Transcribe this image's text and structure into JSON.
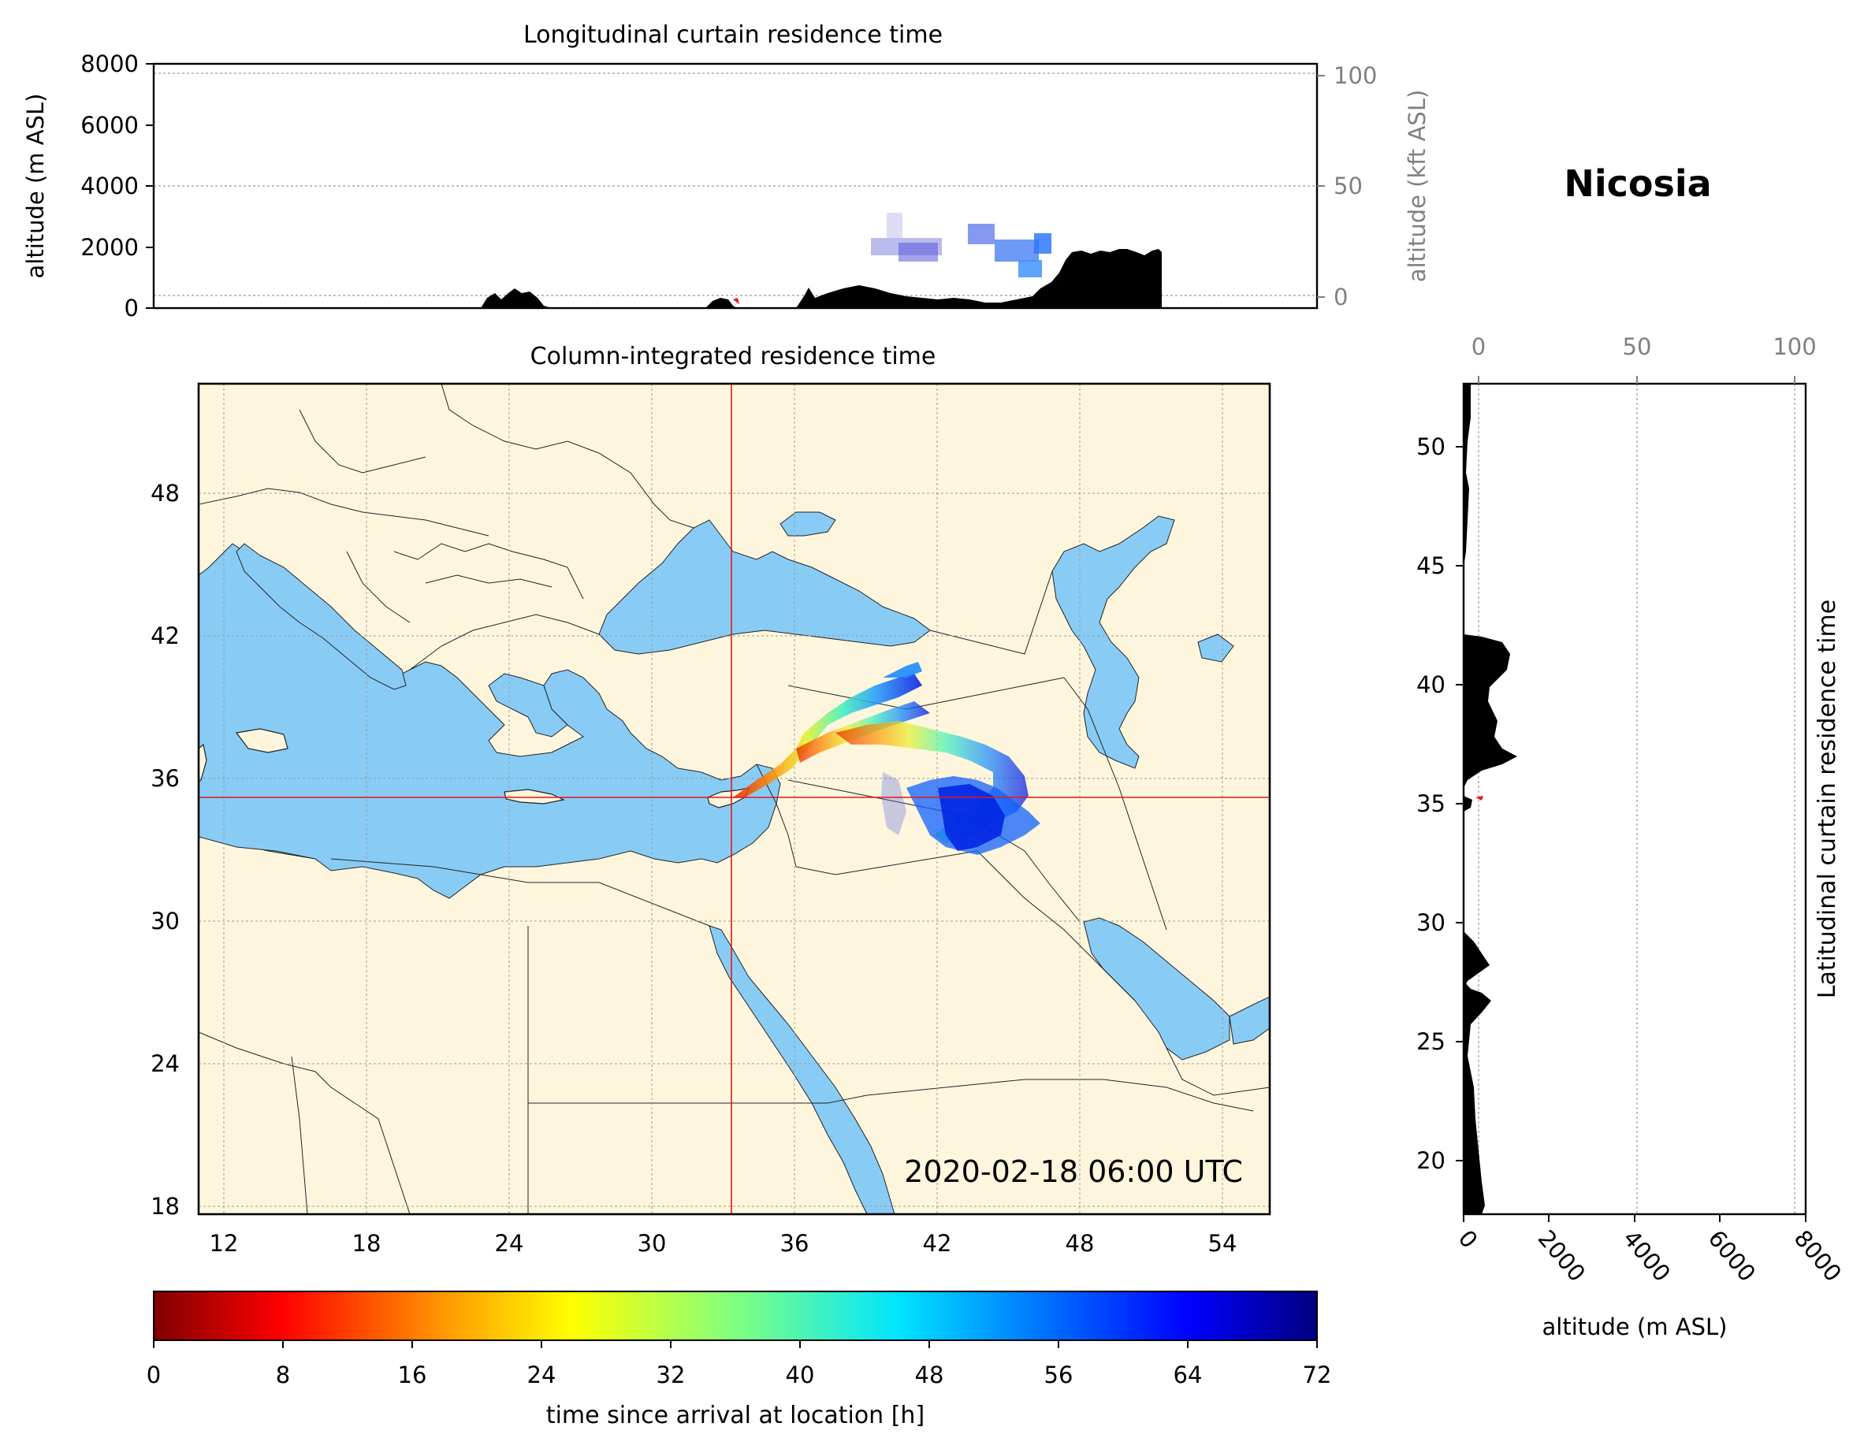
{
  "location_name": "Nicosia",
  "timestamp": "2020-02-18 06:00 UTC",
  "colors": {
    "land": "#fdf6dd",
    "sea": "#88ccf6",
    "crosshair": "#e8141c",
    "terrain": "#000000",
    "grid": "#9a9a9a"
  },
  "curtain_lon": {
    "title": "Longitudinal curtain residence time",
    "ylabel_left": "altitude (m ASL)",
    "ylabel_right": "altitude (kft ASL)",
    "left_ticks": [
      "8000",
      "6000",
      "4000",
      "2000",
      "0"
    ],
    "right_ticks": [
      "100",
      "50",
      "0"
    ]
  },
  "map": {
    "title": "Column-integrated residence time",
    "lon_ticks": [
      "12",
      "18",
      "24",
      "30",
      "36",
      "42",
      "48",
      "54"
    ],
    "lat_ticks": [
      "48",
      "42",
      "36",
      "30",
      "24",
      "18"
    ],
    "lon_range": [
      11,
      56
    ],
    "lat_range": [
      18,
      53
    ],
    "site": {
      "lon": 33.4,
      "lat": 35.2
    }
  },
  "curtain_lat": {
    "label": "Latitudinal curtain residence time",
    "xlabel": "altitude (m ASL)",
    "top_ticks": [
      "0",
      "50",
      "100"
    ],
    "bottom_ticks": [
      "0",
      "2000",
      "4000",
      "6000",
      "8000"
    ],
    "lat_ticks": [
      "50",
      "45",
      "40",
      "35",
      "30",
      "25",
      "20"
    ]
  },
  "colorbar": {
    "label": "time since arrival at location [h]",
    "ticks": [
      "0",
      "8",
      "16",
      "24",
      "32",
      "40",
      "48",
      "56",
      "64",
      "72"
    ],
    "range": [
      0,
      72
    ],
    "colormap": "jet_r"
  }
}
